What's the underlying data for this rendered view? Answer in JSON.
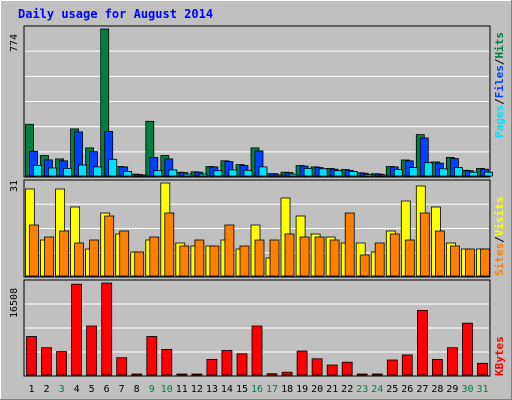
{
  "title": "Daily usage for August 2014",
  "colors": {
    "background": "#c0c0c0",
    "panel": "#c0c0c0",
    "grid": "#ffffff",
    "title": "#0000ff",
    "hits": "#008040",
    "files": "#0040ff",
    "pages": "#00e0ff",
    "visits": "#ffff00",
    "sites": "#ff8000",
    "kbytes": "#ff0000",
    "weekday_label": "#000000",
    "weekend_label": "#008040"
  },
  "labels": {
    "hits": "Hits",
    "files": "Files",
    "pages": "Pages",
    "visits": "Visits",
    "sites": "Sites",
    "kbytes": "KBytes",
    "sep": "/"
  },
  "chart_data": [
    {
      "type": "bar",
      "ymax_label": "774",
      "ylim": [
        0,
        774
      ],
      "categories": [
        "1",
        "2",
        "3",
        "4",
        "5",
        "6",
        "7",
        "8",
        "9",
        "10",
        "11",
        "12",
        "13",
        "14",
        "15",
        "16",
        "17",
        "18",
        "19",
        "20",
        "21",
        "22",
        "23",
        "24",
        "25",
        "26",
        "27",
        "28",
        "29",
        "30",
        "31"
      ],
      "weekend": [
        false,
        false,
        true,
        false,
        false,
        false,
        false,
        false,
        true,
        true,
        false,
        false,
        false,
        false,
        false,
        true,
        true,
        false,
        false,
        false,
        false,
        false,
        true,
        true,
        false,
        false,
        false,
        false,
        false,
        true,
        true
      ],
      "series": [
        {
          "name": "Hits",
          "values": [
            272,
            108,
            90,
            248,
            148,
            774,
            50,
            10,
            288,
            108,
            20,
            22,
            50,
            80,
            60,
            148,
            12,
            20,
            55,
            48,
            40,
            34,
            17,
            12,
            50,
            84,
            218,
            74,
            98,
            30,
            40
          ]
        },
        {
          "name": "Files",
          "values": [
            130,
            85,
            80,
            232,
            128,
            235,
            48,
            8,
            98,
            90,
            18,
            20,
            48,
            76,
            56,
            132,
            12,
            18,
            52,
            44,
            36,
            30,
            15,
            10,
            48,
            80,
            200,
            68,
            92,
            28,
            36
          ]
        },
        {
          "name": "Pages",
          "values": [
            56,
            42,
            40,
            58,
            48,
            88,
            24,
            4,
            28,
            32,
            10,
            10,
            28,
            32,
            30,
            48,
            6,
            10,
            40,
            38,
            28,
            24,
            8,
            6,
            34,
            44,
            70,
            38,
            44,
            20,
            20
          ]
        }
      ]
    },
    {
      "type": "bar",
      "ymax_label": "31",
      "ylim": [
        0,
        31
      ],
      "categories": [
        "1",
        "2",
        "3",
        "4",
        "5",
        "6",
        "7",
        "8",
        "9",
        "10",
        "11",
        "12",
        "13",
        "14",
        "15",
        "16",
        "17",
        "18",
        "19",
        "20",
        "21",
        "22",
        "23",
        "24",
        "25",
        "26",
        "27",
        "28",
        "29",
        "30",
        "31"
      ],
      "series": [
        {
          "name": "Visits",
          "values": [
            29,
            12,
            29,
            23,
            9,
            21,
            14,
            8,
            12,
            31,
            11,
            10,
            10,
            12,
            9,
            17,
            6,
            26,
            20,
            14,
            13,
            11,
            11,
            8,
            15,
            25,
            30,
            23,
            11,
            9,
            9
          ]
        },
        {
          "name": "Sites",
          "values": [
            17,
            13,
            15,
            11,
            12,
            20,
            15,
            8,
            13,
            21,
            10,
            12,
            10,
            17,
            10,
            12,
            12,
            14,
            13,
            13,
            12,
            21,
            7,
            11,
            14,
            12,
            21,
            15,
            10,
            9,
            9
          ]
        }
      ]
    },
    {
      "type": "bar",
      "ymax_label": "16508",
      "ylim": [
        0,
        16508
      ],
      "categories": [
        "1",
        "2",
        "3",
        "4",
        "5",
        "6",
        "7",
        "8",
        "9",
        "10",
        "11",
        "12",
        "13",
        "14",
        "15",
        "16",
        "17",
        "18",
        "19",
        "20",
        "21",
        "22",
        "23",
        "24",
        "25",
        "26",
        "27",
        "28",
        "29",
        "30",
        "31"
      ],
      "series": [
        {
          "name": "KBytes",
          "values": [
            6900,
            4900,
            4200,
            16300,
            8800,
            16508,
            3100,
            150,
            6900,
            4600,
            80,
            60,
            2800,
            4400,
            3800,
            8800,
            240,
            500,
            4300,
            2900,
            1800,
            2300,
            60,
            60,
            2700,
            3600,
            11600,
            2800,
            4900,
            9300,
            2100
          ]
        }
      ]
    }
  ]
}
